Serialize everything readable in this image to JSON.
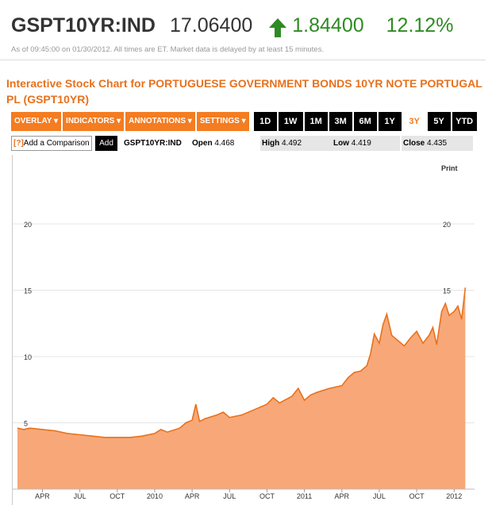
{
  "header": {
    "symbol": "GSPT10YR:IND",
    "price": "17.06400",
    "change": "1.84400",
    "change_pct": "12.12%",
    "up_color": "#2e8b23",
    "arrow_icon": "up-arrow-icon",
    "as_of": "As of 09:45:00 on 01/30/2012. All times are ET. Market data is delayed by at least 15 minutes."
  },
  "chart_title": "Interactive Stock Chart for PORTUGUESE GOVERNMENT BONDS 10YR NOTE PORTUGAL PL (GSPT10YR)",
  "toolbar": {
    "menus": [
      "OVERLAY ▾",
      "INDICATORS ▾",
      "ANNOTATIONS ▾",
      "SETTINGS ▾"
    ],
    "ranges": [
      "1D",
      "1W",
      "1M",
      "3M",
      "6M",
      "1Y",
      "3Y",
      "5Y",
      "YTD"
    ],
    "selected_range": "3Y",
    "accent": "#f47c21"
  },
  "compare": {
    "help": "[?]",
    "label": "Add a Comparison",
    "add_label": "Add",
    "ticker": "GSPT10YR:IND",
    "open_label": "Open",
    "open_value": "4.468",
    "high_label": "High",
    "high_value": "4.492",
    "low_label": "Low",
    "low_value": "4.419",
    "close_label": "Close",
    "close_value": "4.435"
  },
  "print_label": "Print",
  "chart_data": {
    "type": "area",
    "title": "",
    "xlabel": "",
    "ylabel": "",
    "ylim": [
      0,
      22
    ],
    "y_ticks": [
      5,
      10,
      15,
      20
    ],
    "x_ticks": [
      "APR",
      "JUL",
      "OCT",
      "2010",
      "APR",
      "JUL",
      "OCT",
      "2011",
      "APR",
      "JUL",
      "OCT",
      "2012"
    ],
    "x_tick_months": [
      2,
      5,
      8,
      11,
      14,
      17,
      20,
      23,
      26,
      29,
      32,
      35
    ],
    "fill_color": "#f8a878",
    "line_color": "#e8711d",
    "series": [
      {
        "x": [
          0,
          0.5,
          1,
          2,
          3,
          4,
          5,
          6,
          7,
          8,
          9,
          10,
          11,
          11.5,
          12,
          13,
          13.5,
          14,
          14.3,
          14.6,
          15,
          16,
          16.5,
          17,
          18,
          19,
          20,
          20.5,
          21,
          22,
          22.5,
          23,
          23.5,
          24,
          25,
          26,
          26.5,
          27,
          27.5,
          28,
          28.3,
          28.6,
          29,
          29.3,
          29.6,
          30,
          30.5,
          31,
          31.5,
          32,
          32.5,
          33,
          33.3,
          33.6,
          34,
          34.3,
          34.6,
          35,
          35.3,
          35.6,
          35.9
        ],
        "values": [
          4.6,
          4.5,
          4.6,
          4.5,
          4.4,
          4.2,
          4.1,
          4.0,
          3.9,
          3.9,
          3.9,
          4.0,
          4.2,
          4.5,
          4.3,
          4.6,
          5.0,
          5.2,
          6.4,
          5.1,
          5.3,
          5.6,
          5.8,
          5.4,
          5.6,
          6.0,
          6.4,
          6.9,
          6.5,
          7.0,
          7.6,
          6.7,
          7.1,
          7.3,
          7.6,
          7.8,
          8.4,
          8.8,
          8.9,
          9.3,
          10.2,
          11.7,
          11.0,
          12.4,
          13.2,
          11.6,
          11.2,
          10.8,
          11.4,
          11.9,
          11.0,
          11.6,
          12.2,
          10.9,
          13.4,
          14.0,
          13.1,
          13.4,
          13.8,
          12.8,
          15.2
        ]
      }
    ]
  }
}
